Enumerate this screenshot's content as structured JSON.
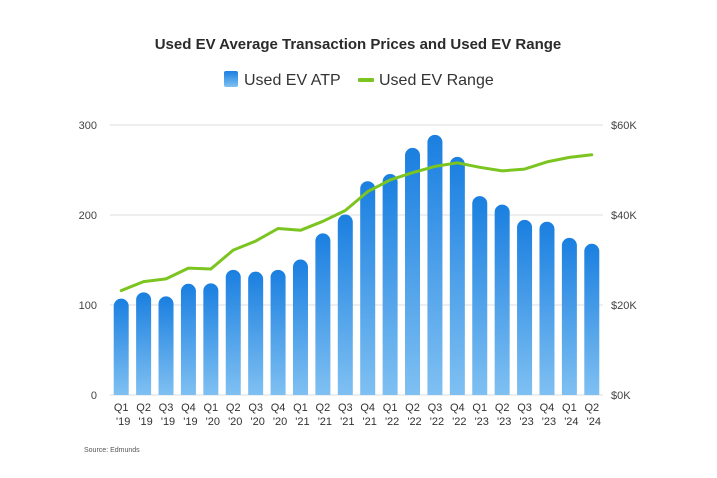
{
  "chart_data": {
    "type": "bar",
    "title": "Used EV Average Transaction Prices and Used EV Range",
    "categories": [
      [
        "Q1",
        "'19"
      ],
      [
        "Q2",
        "'19"
      ],
      [
        "Q3",
        "'19"
      ],
      [
        "Q4",
        "'19"
      ],
      [
        "Q1",
        "'20"
      ],
      [
        "Q2",
        "'20"
      ],
      [
        "Q3",
        "'20"
      ],
      [
        "Q4",
        "'20"
      ],
      [
        "Q1",
        "'21"
      ],
      [
        "Q2",
        "'21"
      ],
      [
        "Q3",
        "'21"
      ],
      [
        "Q4",
        "'21"
      ],
      [
        "Q1",
        "'22"
      ],
      [
        "Q2",
        "'22"
      ],
      [
        "Q3",
        "'22"
      ],
      [
        "Q4",
        "'22"
      ],
      [
        "Q1",
        "'23"
      ],
      [
        "Q2",
        "'23"
      ],
      [
        "Q3",
        "'23"
      ],
      [
        "Q4",
        "'23"
      ],
      [
        "Q1",
        "'24"
      ],
      [
        "Q2",
        "'24"
      ]
    ],
    "series": [
      {
        "name": "Used EV ATP",
        "kind": "bar",
        "axis": "right",
        "color_top": "#1a7fe0",
        "color_bottom": "#7fc0f2",
        "values": [
          21300,
          22700,
          21800,
          24600,
          24700,
          27700,
          27300,
          27700,
          30000,
          35800,
          40000,
          47400,
          49000,
          54800,
          57700,
          52800,
          44100,
          42200,
          38800,
          38400,
          34800,
          33500
        ]
      },
      {
        "name": "Used EV Range",
        "kind": "line",
        "axis": "left",
        "color": "#7cc520",
        "values": [
          116,
          126,
          129,
          141,
          140,
          161,
          171,
          185,
          183,
          193,
          205,
          226,
          239,
          247,
          254,
          258,
          253,
          249,
          251,
          259,
          264,
          267
        ]
      }
    ],
    "left_axis": {
      "min": 0,
      "max": 300,
      "ticks": [
        "0",
        "100",
        "200",
        "300"
      ]
    },
    "right_axis": {
      "min": 0,
      "max": 60000,
      "ticks": [
        "$0K",
        "$20K",
        "$40K",
        "$60K"
      ]
    },
    "grid": true,
    "legend_position": "top-center",
    "source": "Source: Edmunds"
  }
}
